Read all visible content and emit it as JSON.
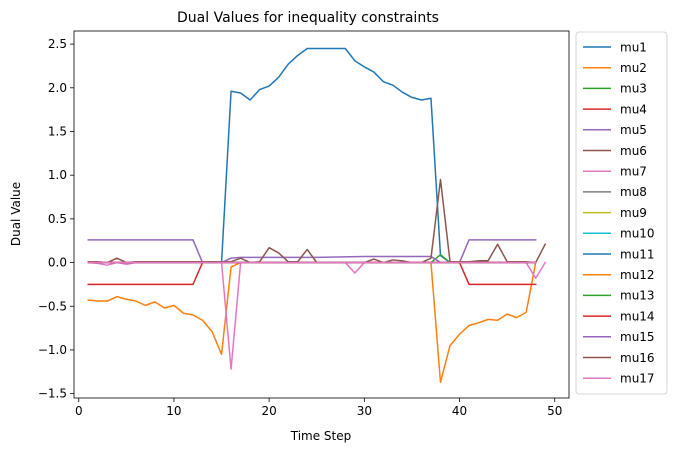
{
  "chart_data": {
    "type": "line",
    "title": "Dual Values for inequality constraints",
    "xlabel": "Time Step",
    "ylabel": "Dual Value",
    "xlim": [
      -0.5,
      51.5
    ],
    "ylim": [
      -1.55,
      2.65
    ],
    "xticks": [
      0,
      10,
      20,
      30,
      40,
      50
    ],
    "yticks": [
      -1.5,
      -1.0,
      -0.5,
      0.0,
      0.5,
      1.0,
      1.5,
      2.0,
      2.5
    ],
    "ytick_labels": [
      "−1.5",
      "−1.0",
      "−0.5",
      "0.0",
      "0.5",
      "1.0",
      "1.5",
      "2.0",
      "2.5"
    ],
    "grid": false,
    "legend": "outside-right",
    "series": [
      {
        "name": "mu1",
        "color": "#1f77b4",
        "x": [
          1,
          2,
          3,
          4,
          5,
          6,
          7,
          8,
          9,
          10,
          11,
          12,
          13,
          14,
          15,
          16,
          17,
          18,
          19,
          20,
          21,
          22,
          23,
          24,
          25,
          26,
          27,
          28,
          29,
          30,
          31,
          32,
          33,
          34,
          35,
          36,
          37,
          38,
          39,
          40,
          41,
          42,
          43,
          44,
          45,
          46,
          47,
          48
        ],
        "y": [
          0,
          0,
          0,
          0,
          0,
          0,
          0,
          0,
          0,
          0,
          0,
          0,
          0,
          0,
          0,
          1.96,
          1.94,
          1.86,
          1.98,
          2.02,
          2.12,
          2.27,
          2.37,
          2.45,
          2.45,
          2.45,
          2.45,
          2.45,
          2.31,
          2.24,
          2.18,
          2.07,
          2.03,
          1.95,
          1.89,
          1.86,
          1.88,
          0.08,
          0,
          0,
          0,
          0,
          0,
          0,
          0,
          0,
          0,
          0
        ]
      },
      {
        "name": "mu2",
        "color": "#ff7f0e",
        "x": [
          1,
          2,
          3,
          4,
          5,
          6,
          7,
          8,
          9,
          10,
          11,
          12,
          13,
          14,
          15,
          16,
          17,
          18,
          19,
          20,
          21,
          22,
          23,
          24,
          25,
          26,
          27,
          28,
          29,
          30,
          31,
          32,
          33,
          34,
          35,
          36,
          37,
          38,
          39,
          40,
          41,
          42,
          43,
          44,
          45,
          46,
          47,
          48
        ],
        "y": [
          -0.43,
          -0.44,
          -0.44,
          -0.39,
          -0.42,
          -0.44,
          -0.49,
          -0.45,
          -0.52,
          -0.49,
          -0.58,
          -0.6,
          -0.66,
          -0.79,
          -1.05,
          -0.05,
          0,
          0,
          0,
          0,
          0,
          0,
          0,
          0,
          0,
          0,
          0,
          0,
          0,
          0,
          0,
          0,
          0,
          0,
          0,
          0,
          0,
          -1.37,
          -0.95,
          -0.82,
          -0.72,
          -0.69,
          -0.65,
          -0.66,
          -0.59,
          -0.63,
          -0.57,
          0
        ]
      },
      {
        "name": "mu3",
        "color": "#2ca02c",
        "x": [
          1,
          5,
          10,
          15,
          16,
          20,
          25,
          30,
          35,
          37,
          38,
          39,
          40,
          45,
          48
        ],
        "y": [
          0,
          0,
          0,
          0,
          0,
          0,
          0,
          0,
          0,
          0,
          0.09,
          0,
          0,
          0,
          0
        ]
      },
      {
        "name": "mu4",
        "color": "#d62728",
        "x": [
          1,
          12,
          13,
          14,
          15,
          20,
          25,
          30,
          35,
          40,
          41,
          44,
          48
        ],
        "y": [
          -0.25,
          -0.25,
          0,
          0,
          0,
          0,
          0,
          0,
          0,
          0,
          -0.25,
          -0.25,
          -0.25
        ]
      },
      {
        "name": "mu5",
        "color": "#9467bd",
        "x": [
          1,
          12,
          13,
          14,
          15,
          16,
          17,
          20,
          25,
          30,
          35,
          37,
          38,
          39,
          40,
          41,
          44,
          48
        ],
        "y": [
          0.26,
          0.26,
          0,
          0,
          0,
          0.05,
          0.06,
          0.06,
          0.06,
          0.07,
          0.07,
          0.07,
          0,
          0,
          0,
          0.26,
          0.26,
          0.26
        ]
      },
      {
        "name": "mu6",
        "color": "#8c564b",
        "x": [
          1,
          2,
          3,
          4,
          5,
          6,
          7,
          8,
          9,
          10,
          11,
          12,
          13,
          14,
          15,
          16,
          17,
          18,
          19,
          20,
          21,
          22,
          23,
          24,
          25,
          26,
          27,
          28,
          29,
          30,
          31,
          32,
          33,
          34,
          35,
          36,
          37,
          38,
          39,
          40,
          41,
          42,
          43,
          44,
          45,
          46,
          47,
          48,
          49
        ],
        "y": [
          0.01,
          0.01,
          0,
          0.05,
          0,
          0.01,
          0.01,
          0.01,
          0.01,
          0.01,
          0.01,
          0.01,
          0.01,
          0.01,
          0.01,
          0.01,
          0.05,
          0,
          0.01,
          0.17,
          0.11,
          0.01,
          0.01,
          0.15,
          0,
          0,
          0,
          0,
          0,
          0,
          0.04,
          0,
          0.03,
          0.02,
          0,
          0,
          0.05,
          0.95,
          0.01,
          0.01,
          0.01,
          0.02,
          0.02,
          0.21,
          0.01,
          0.01,
          0.01,
          0,
          0.21
        ]
      },
      {
        "name": "mu7",
        "color": "#e377c2",
        "x": [
          1,
          2,
          3,
          4,
          5,
          6,
          7,
          8,
          9,
          10,
          11,
          12,
          13,
          14,
          15,
          16,
          17,
          18,
          19,
          20,
          21,
          22,
          23,
          24,
          25,
          26,
          27,
          28,
          29,
          30,
          31,
          32,
          33,
          34,
          35,
          36,
          37,
          38,
          39,
          40,
          41,
          42,
          43,
          44,
          45,
          46,
          47,
          48,
          49
        ],
        "y": [
          0,
          -0.01,
          -0.03,
          0,
          -0.02,
          0,
          0,
          0,
          0,
          0,
          0,
          0,
          0,
          0,
          0,
          -1.22,
          0,
          0,
          0,
          0,
          0,
          0,
          0,
          0,
          0,
          0,
          0,
          0,
          -0.12,
          0,
          0,
          0,
          0,
          0,
          0,
          0,
          0,
          0,
          0,
          0,
          0,
          0,
          0,
          0,
          0,
          0,
          0,
          -0.18,
          0
        ]
      },
      {
        "name": "mu8",
        "color": "#7f7f7f",
        "x": [
          1,
          48
        ],
        "y": [
          0,
          0
        ]
      },
      {
        "name": "mu9",
        "color": "#bcbd22",
        "x": [
          1,
          48
        ],
        "y": [
          0,
          0
        ]
      },
      {
        "name": "mu10",
        "color": "#17becf",
        "x": [
          1,
          48
        ],
        "y": [
          0,
          0
        ]
      },
      {
        "name": "mu11",
        "color": "#1f77b4",
        "x": [
          1,
          48
        ],
        "y": [
          0,
          0
        ]
      },
      {
        "name": "mu12",
        "color": "#ff7f0e",
        "x": [
          1,
          48
        ],
        "y": [
          0,
          0
        ]
      },
      {
        "name": "mu13",
        "color": "#2ca02c",
        "x": [
          1,
          48
        ],
        "y": [
          0,
          0
        ]
      },
      {
        "name": "mu14",
        "color": "#d62728",
        "x": [
          1,
          48
        ],
        "y": [
          0,
          0
        ]
      },
      {
        "name": "mu15",
        "color": "#9467bd",
        "x": [
          1,
          48
        ],
        "y": [
          0,
          0
        ]
      },
      {
        "name": "mu16",
        "color": "#8c564b",
        "x": [
          1,
          48
        ],
        "y": [
          0,
          0
        ]
      },
      {
        "name": "mu17",
        "color": "#e377c2",
        "x": [
          1,
          48
        ],
        "y": [
          0,
          0
        ]
      }
    ]
  }
}
